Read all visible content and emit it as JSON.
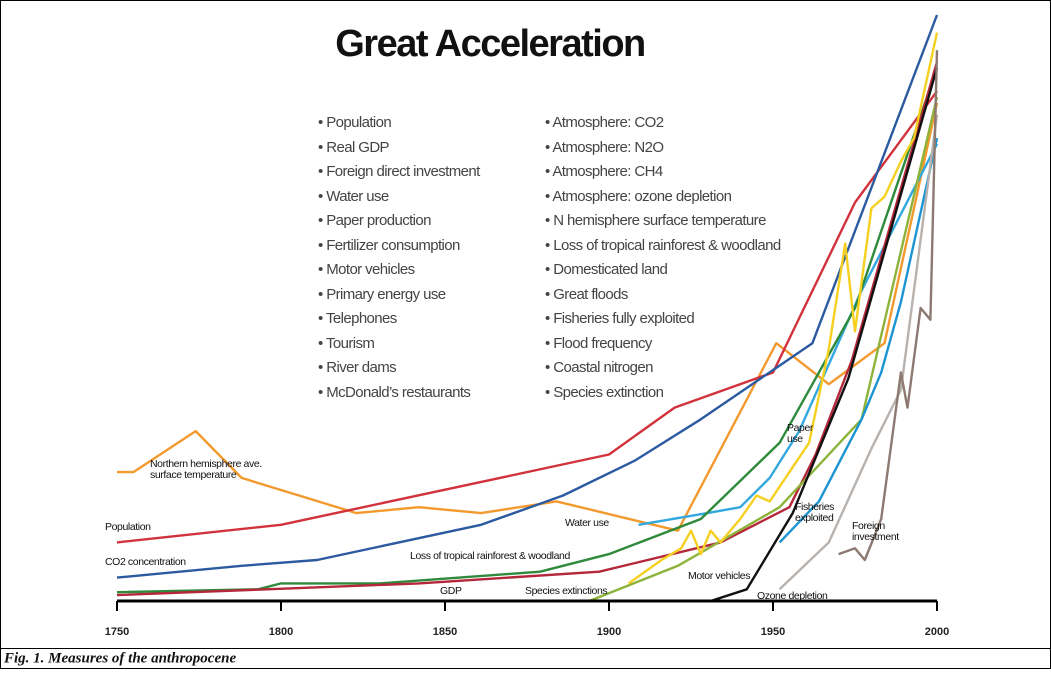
{
  "caption": "Fig. 1. Measures of the anthropocene",
  "chart_data": {
    "type": "line",
    "title": "Great Acceleration",
    "notes": [
      [
        "Population",
        "Real GDP",
        "Foreign direct investment",
        "Water use",
        "Paper production",
        "Fertilizer consumption",
        "Motor vehicles",
        "Primary energy use",
        "Telephones",
        "Tourism",
        "River dams",
        "McDonald’s restaurants"
      ],
      [
        "Atmosphere: CO2",
        "Atmosphere: N2O",
        "Atmosphere: CH4",
        "Atmosphere: ozone depletion",
        "N hemisphere surface temperature",
        "Loss of tropical rainforest & woodland",
        "Domesticated land",
        "Great floods",
        "Fisheries fully exploited",
        "Flood frequency",
        "Coastal nitrogen",
        "Species extinction"
      ]
    ],
    "xlim": [
      1750,
      2000
    ],
    "xticks": [
      1750,
      1800,
      1850,
      1900,
      1950,
      2000
    ],
    "ylim": [
      0,
      100
    ],
    "series": [
      {
        "name": "Northern hemisphere ave. surface temperature",
        "color": "#f39a2e",
        "x": [
          1750,
          1755,
          1774,
          1788,
          1823,
          1842,
          1861,
          1884,
          1921,
          1951,
          1967,
          1984,
          2000
        ],
        "values": [
          22,
          22,
          29,
          21,
          15,
          16,
          15,
          17,
          12,
          44,
          37,
          44,
          85
        ]
      },
      {
        "name": "Population",
        "color": "#d2323c",
        "x": [
          1750,
          1800,
          1850,
          1900,
          1920,
          1950,
          1975,
          2000
        ],
        "values": [
          10,
          13,
          19,
          25,
          33,
          39,
          68,
          87
        ]
      },
      {
        "name": "CO2 concentration",
        "color": "#2c5aa0",
        "x": [
          1750,
          1788,
          1811,
          1861,
          1886,
          1908,
          1928,
          1962,
          2000
        ],
        "values": [
          4,
          6,
          7,
          13,
          18,
          24,
          31,
          44,
          100
        ]
      },
      {
        "name": "Water use",
        "color": "#33a8de",
        "x": [
          1909,
          1930,
          1940,
          1949,
          1958,
          1977,
          2000
        ],
        "values": [
          13,
          15,
          16,
          21,
          29,
          53,
          78
        ]
      },
      {
        "name": "Loss of tropical rainforest & woodland",
        "color": "#2f8a3c",
        "x": [
          1750,
          1793,
          1800,
          1830,
          1879,
          1900,
          1928,
          1952,
          1975,
          2000
        ],
        "values": [
          1.5,
          2,
          3,
          3,
          5,
          8,
          14,
          27,
          50,
          91
        ]
      },
      {
        "name": "GDP",
        "color": "#b5273a",
        "x": [
          1750,
          1842,
          1897,
          1934,
          1955,
          1963,
          1974,
          2000
        ],
        "values": [
          1,
          3,
          5,
          10,
          16,
          25,
          41,
          92
        ]
      },
      {
        "name": "Species extinctions",
        "color": "#8db33a",
        "x": [
          1894,
          1921,
          1952,
          1977,
          2000
        ],
        "values": [
          0,
          6,
          16,
          31,
          86
        ]
      },
      {
        "name": "Paper use",
        "color": "#f5d020",
        "x": [
          1906,
          1916,
          1922,
          1925,
          1928,
          1931,
          1934,
          1940,
          1945,
          1949,
          1955,
          1961,
          1967,
          1972,
          1975,
          1980,
          1984,
          1989,
          1993,
          2000
        ],
        "values": [
          3,
          7,
          9,
          12,
          8,
          12,
          10,
          14,
          18,
          17,
          22,
          27,
          43,
          61,
          46,
          67,
          69,
          75,
          79,
          97
        ]
      },
      {
        "name": "Fisheries exploited",
        "color": "#1c94d2",
        "x": [
          1952,
          1964,
          1977,
          1983,
          1989,
          2000
        ],
        "values": [
          10,
          17,
          31,
          39,
          51,
          79
        ]
      },
      {
        "name": "Motor vehicles",
        "color": "#111111",
        "x": [
          1898,
          1931,
          1942,
          1956,
          1973,
          2000
        ],
        "values": [
          0,
          0,
          2,
          15,
          38,
          91
        ]
      },
      {
        "name": "Ozone depletion",
        "color": "#b8b2ae",
        "x": [
          1952,
          1967,
          1980,
          1989,
          2000
        ],
        "values": [
          2,
          10,
          26,
          36,
          83
        ]
      },
      {
        "name": "Foreign investment",
        "color": "#8c7a72",
        "x": [
          1970,
          1975,
          1978,
          1983,
          1989,
          1991,
          1995,
          1998,
          2000
        ],
        "values": [
          8,
          9,
          7,
          14,
          39,
          33,
          50,
          48,
          94
        ]
      }
    ]
  }
}
